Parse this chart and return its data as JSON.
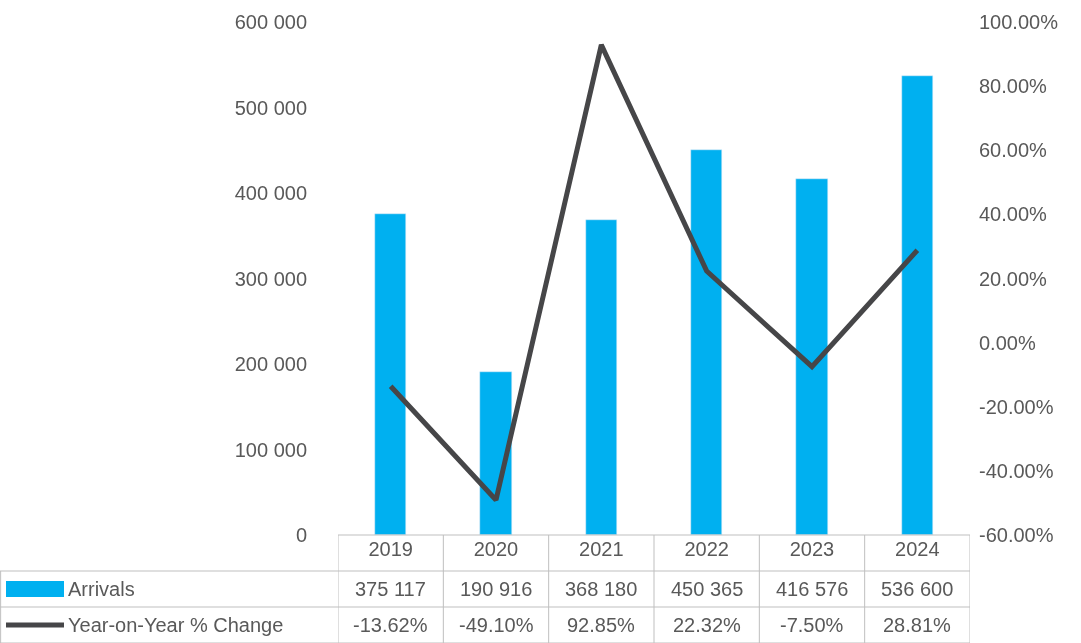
{
  "chart_data": {
    "type": "bar",
    "categories": [
      "2019",
      "2020",
      "2021",
      "2022",
      "2023",
      "2024"
    ],
    "series": [
      {
        "name": "Arrivals",
        "color": "#00b0f0",
        "values": [
          375117,
          190916,
          368180,
          450365,
          416576,
          536600
        ],
        "value_labels": [
          "375 117",
          "190 916",
          "368 180",
          "450 365",
          "416 576",
          "536 600"
        ]
      },
      {
        "name": "Year-on-Year % Change",
        "type": "line",
        "axis": "y2",
        "color": "#464648",
        "values": [
          -13.62,
          -49.1,
          92.85,
          22.32,
          -7.5,
          28.81
        ],
        "value_labels": [
          "-13.62%",
          "-49.10%",
          "92.85%",
          "22.32%",
          "-7.50%",
          "28.81%"
        ]
      }
    ],
    "ylim": [
      0,
      600000
    ],
    "yticks": [
      0,
      {
        "value": 100000,
        "label": "100 000"
      },
      {
        "value": 200000,
        "label": "200 000"
      },
      {
        "value": 300000,
        "label": "300 000"
      },
      {
        "value": 400000,
        "label": "400 000"
      },
      {
        "value": 500000,
        "label": "500 000"
      },
      {
        "value": 600000,
        "label": "600 000"
      }
    ],
    "y2lim": [
      -60,
      100
    ],
    "y2ticks": [
      {
        "value": -60,
        "label": "-60.00%"
      },
      {
        "value": -40,
        "label": "-40.00%"
      },
      {
        "value": -20,
        "label": "-20.00%"
      },
      {
        "value": 0,
        "label": "0.00%"
      },
      {
        "value": 20,
        "label": "20.00%"
      },
      {
        "value": 40,
        "label": "40.00%"
      },
      {
        "value": 60,
        "label": "60.00%"
      },
      {
        "value": 80,
        "label": "80.00%"
      },
      {
        "value": 100,
        "label": "100.00%"
      }
    ],
    "legend": "bottom",
    "marker": "none",
    "line_style": "solid"
  }
}
